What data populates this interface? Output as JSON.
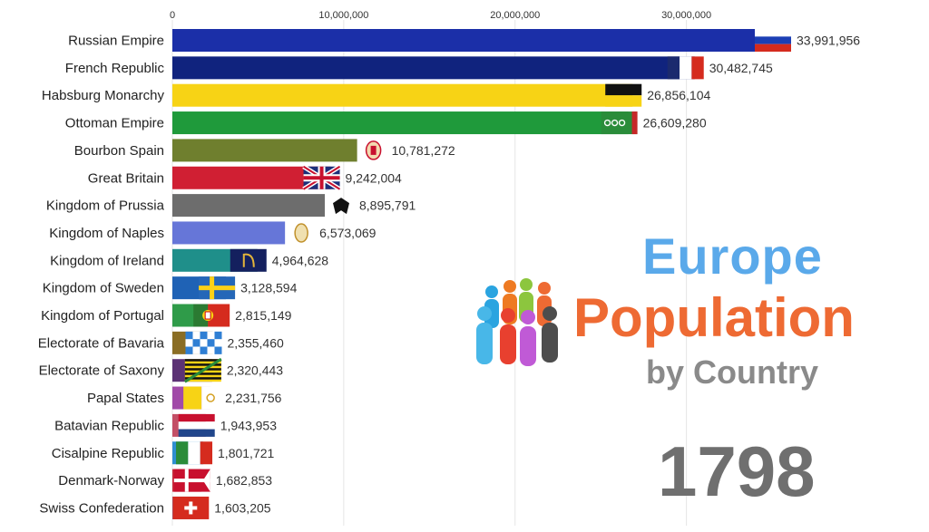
{
  "colors": {
    "title_europe": "#5aa9ea",
    "title_population": "#ee6a33",
    "title_by_country": "#8a8a8a",
    "year": "#6f6f6f"
  },
  "title": {
    "line1": "Europe",
    "line2": "Population",
    "line3": "by Country"
  },
  "year": "1798",
  "chart_data": {
    "type": "bar",
    "orientation": "horizontal",
    "xlim": [
      0,
      35000000
    ],
    "x_ticks": [
      0,
      10000000,
      20000000,
      30000000
    ],
    "x_tick_labels": [
      "0",
      "10,000,000",
      "20,000,000",
      "30,000,000"
    ],
    "grid": true,
    "categories": [
      "Russian Empire",
      "French Republic",
      "Habsburg Monarchy",
      "Ottoman Empire",
      "Bourbon Spain",
      "Great Britain",
      "Kingdom of Prussia",
      "Kingdom of Naples",
      "Kingdom of Ireland",
      "Kingdom of Sweden",
      "Kingdom of Portugal",
      "Electorate of Bavaria",
      "Electorate of Saxony",
      "Papal States",
      "Batavian Republic",
      "Cisalpine Republic",
      "Denmark-Norway",
      "Swiss Confederation"
    ],
    "values": [
      33991956,
      30482745,
      26856104,
      26609280,
      10781272,
      9242004,
      8895791,
      6573069,
      4964628,
      3128594,
      2815149,
      2355460,
      2320443,
      2231756,
      1943953,
      1801721,
      1682853,
      1603205
    ],
    "value_labels": [
      "33,991,956",
      "30,482,745",
      "26,856,104",
      "26,609,280",
      "10,781,272",
      "9,242,004",
      "8,895,791",
      "6,573,069",
      "4,964,628",
      "3,128,594",
      "2,815,149",
      "2,355,460",
      "2,320,443",
      "2,231,756",
      "1,943,953",
      "1,801,721",
      "1,682,853",
      "1,603,205"
    ],
    "bar_colors": [
      "#1b2fa8",
      "#10237e",
      "#f7d315",
      "#1f9a3b",
      "#6f7f2e",
      "#d01f33",
      "#6d6d6d",
      "#6676d8",
      "#1f8f8a",
      "#1f62b5",
      "#2f9b49",
      "#8a6d24",
      "#5c3275",
      "#a14aa8",
      "#c34f66",
      "#2e8fd1",
      "#c8273a",
      "#5b8fd6"
    ],
    "flags": [
      "russia-flag",
      "france-flag",
      "habsburg-flag",
      "ottoman-flag",
      "spain-arms",
      "britain-flag",
      "prussia-eagle",
      "naples-arms",
      "ireland-harp-flag",
      "sweden-flag",
      "portugal-flag",
      "bavaria-flag",
      "saxony-flag",
      "papal-flag",
      "netherlands-flag",
      "italy-flag",
      "denmark-flag",
      "swiss-flag"
    ]
  }
}
